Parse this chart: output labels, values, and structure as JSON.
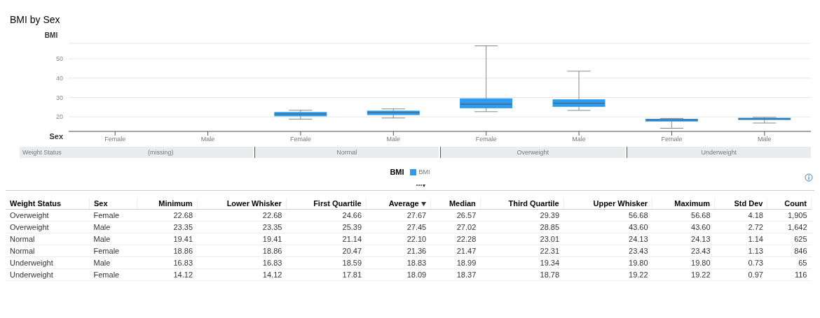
{
  "chart_data": [
    {
      "type": "box",
      "title": "BMI by Sex",
      "ylabel": "BMI",
      "xlabel": "Sex",
      "legend_title": "BMI",
      "legend": "bottom",
      "grid": "y",
      "categories": [
        "Female",
        "Male",
        "Female",
        "Male",
        "Female",
        "Male",
        "Female",
        "Male"
      ],
      "series": [
        {
          "name": "BMI",
          "color": "#2d9cf0",
          "boxes": [
            null,
            null,
            {
              "low": 18.86,
              "q1": 20.47,
              "median": 21.47,
              "q3": 22.31,
              "high": 23.43
            },
            {
              "low": 19.41,
              "q1": 21.14,
              "median": 22.28,
              "q3": 23.01,
              "high": 24.13
            },
            {
              "low": 22.68,
              "q1": 24.66,
              "median": 26.57,
              "q3": 29.39,
              "high": 56.68
            },
            {
              "low": 23.35,
              "q1": 25.39,
              "median": 27.02,
              "q3": 28.85,
              "high": 43.6
            },
            {
              "low": 14.12,
              "q1": 17.81,
              "median": 18.37,
              "q3": 18.78,
              "high": 19.22
            },
            {
              "low": 16.83,
              "q1": 18.59,
              "median": 18.99,
              "q3": 19.34,
              "high": 19.8
            }
          ]
        }
      ],
      "ylim": [
        12.5,
        58
      ],
      "yticks": [
        20,
        30,
        40,
        50
      ],
      "annotations": [
        "Weight Status",
        "(missing)",
        "Normal",
        "Overweight",
        "Underweight"
      ]
    },
    {
      "type": "other",
      "categories": [
        "Weight Status",
        "Sex",
        "Minimum",
        "Lower Whisker",
        "First Quartile",
        "Average",
        "Median",
        "Third Quartile",
        "Upper Whisker",
        "Maximum",
        "Std Dev",
        "Count"
      ],
      "annotations": [
        "Overweight",
        "Female",
        "22.68",
        "22.68",
        "24.66",
        "27.67",
        "26.57",
        "29.39",
        "56.68",
        "56.68",
        "4.18",
        "1,905",
        "Overweight",
        "Male",
        "23.35",
        "23.35",
        "25.39",
        "27.45",
        "27.02",
        "28.85",
        "43.60",
        "43.60",
        "2.72",
        "1,642",
        "Normal",
        "Male",
        "19.41",
        "19.41",
        "21.14",
        "22.10",
        "22.28",
        "23.01",
        "24.13",
        "24.13",
        "1.14",
        "625",
        "Normal",
        "Female",
        "18.86",
        "18.86",
        "20.47",
        "21.36",
        "21.47",
        "22.31",
        "23.43",
        "23.43",
        "1.13",
        "846",
        "Underweight",
        "Male",
        "16.83",
        "16.83",
        "18.59",
        "18.83",
        "18.99",
        "19.34",
        "19.80",
        "19.80",
        "0.73",
        "65",
        "Underweight",
        "Female",
        "14.12",
        "14.12",
        "17.81",
        "18.09",
        "18.37",
        "18.78",
        "19.22",
        "19.22",
        "0.97",
        "116"
      ]
    }
  ]
}
